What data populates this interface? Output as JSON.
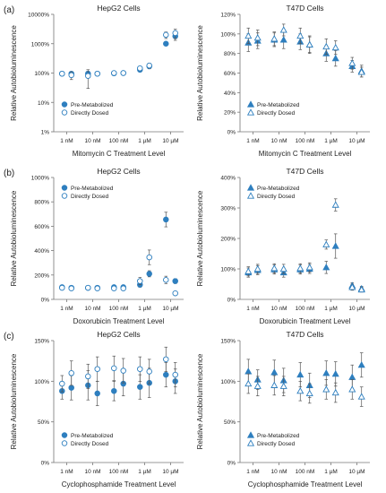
{
  "colors": {
    "series": "#2e7fbf",
    "axis": "#777777",
    "text": "#222222"
  },
  "panel_labels": [
    "(a)",
    "(b)",
    "(c)"
  ],
  "chart_data": [
    {
      "type": "scatter",
      "title": "HepG2 Cells",
      "ylabel": "Relative Autobioluminescence",
      "xlabel": "Mitomycin C Treatment Level",
      "yscale": "log",
      "ylim": [
        1,
        10000
      ],
      "yticks": [
        "1%",
        "10%",
        "100%",
        "1000%",
        "10000%"
      ],
      "x_tick_labels": [
        "1 nM",
        "10 nM",
        "100 nM",
        "1 µM",
        "10 µM"
      ],
      "marker_shape": "circle",
      "legend": "bottom-left",
      "series": [
        {
          "name": "Pre-Metabolized",
          "filled": true,
          "values": [
            95,
            95,
            95,
            95,
            98,
            100,
            130,
            170,
            1000,
            1800
          ],
          "errors": [
            8,
            10,
            20,
            10,
            8,
            10,
            20,
            30,
            150,
            500
          ]
        },
        {
          "name": "Directly Dosed",
          "filled": false,
          "values": [
            95,
            85,
            80,
            95,
            100,
            100,
            145,
            180,
            2000,
            2300
          ],
          "errors": [
            10,
            25,
            50,
            10,
            10,
            10,
            25,
            35,
            500,
            800
          ]
        }
      ]
    },
    {
      "type": "scatter",
      "title": "T47D Cells",
      "ylabel": "Relative Autobioluminescence",
      "xlabel": "Mitomycin C Treatment Level",
      "yscale": "linear",
      "ylim": [
        0,
        120
      ],
      "yticks": [
        "0%",
        "20%",
        "40%",
        "60%",
        "80%",
        "100%",
        "120%"
      ],
      "x_tick_labels": [
        "1 nM",
        "10 nM",
        "100 nM",
        "1 µM",
        "10 µM"
      ],
      "marker_shape": "triangle",
      "legend": "bottom-left",
      "series": [
        {
          "name": "Pre-Metabolized",
          "filled": true,
          "values": [
            91,
            93,
            94,
            94,
            92,
            89,
            80,
            75,
            67,
            62
          ],
          "errors": [
            9,
            8,
            7,
            9,
            8,
            9,
            8,
            8,
            6,
            6
          ]
        },
        {
          "name": "Directly Dosed",
          "filled": false,
          "values": [
            98,
            96,
            95,
            104,
            98,
            89,
            87,
            86,
            70,
            61
          ],
          "errors": [
            8,
            8,
            7,
            6,
            8,
            8,
            8,
            7,
            6,
            5
          ]
        }
      ]
    },
    {
      "type": "scatter",
      "title": "HepG2 Cells",
      "ylabel": "Relative Autobioluminescence",
      "xlabel": "Doxorubicin Treatment Level",
      "yscale": "linear",
      "ylim": [
        0,
        1000
      ],
      "yticks": [
        "0%",
        "200%",
        "400%",
        "600%",
        "800%",
        "1000%"
      ],
      "x_tick_labels": [
        "1 nM",
        "10 nM",
        "100 nM",
        "1 µM",
        "10 µM"
      ],
      "marker_shape": "circle",
      "legend": "top-left",
      "series": [
        {
          "name": "Pre-Metabolized",
          "filled": true,
          "values": [
            100,
            95,
            95,
            95,
            100,
            100,
            120,
            210,
            655,
            150
          ],
          "errors": [
            10,
            10,
            10,
            10,
            15,
            15,
            20,
            25,
            60,
            20
          ]
        },
        {
          "name": "Directly Dosed",
          "filled": false,
          "values": [
            95,
            90,
            95,
            90,
            90,
            90,
            150,
            345,
            160,
            50
          ],
          "errors": [
            10,
            10,
            10,
            10,
            10,
            10,
            30,
            60,
            30,
            10
          ]
        }
      ]
    },
    {
      "type": "scatter",
      "title": "T47D Cells",
      "ylabel": "Relative Autobioluminescence",
      "xlabel": "Doxorubicin Treatment Level",
      "yscale": "linear",
      "ylim": [
        0,
        400
      ],
      "yticks": [
        "0%",
        "100%",
        "200%",
        "300%",
        "400%"
      ],
      "x_tick_labels": [
        "1 nM",
        "10 nM",
        "100 nM",
        "1 µM",
        "10 µM"
      ],
      "marker_shape": "triangle",
      "legend": "top-left",
      "series": [
        {
          "name": "Pre-Metabolized",
          "filled": true,
          "values": [
            88,
            96,
            98,
            88,
            98,
            100,
            105,
            175,
            45,
            35
          ],
          "errors": [
            15,
            15,
            15,
            15,
            15,
            15,
            20,
            40,
            10,
            8
          ]
        },
        {
          "name": "Directly Dosed",
          "filled": false,
          "values": [
            92,
            100,
            102,
            100,
            102,
            105,
            180,
            310,
            40,
            32
          ],
          "errors": [
            15,
            15,
            15,
            15,
            15,
            15,
            15,
            20,
            10,
            8
          ]
        }
      ]
    },
    {
      "type": "scatter",
      "title": "HepG2 Cells",
      "ylabel": "Relative Autobioluminescence",
      "xlabel": "Cyclophosphamide Treatment Level",
      "yscale": "linear",
      "ylim": [
        0,
        150
      ],
      "yticks": [
        "0%",
        "50%",
        "100%",
        "150%"
      ],
      "x_tick_labels": [
        "1 nM",
        "10 nM",
        "100 nM",
        "1 µM",
        "10 µM"
      ],
      "marker_shape": "circle",
      "legend": "bottom-left",
      "series": [
        {
          "name": "Pre-Metabolized",
          "filled": true,
          "values": [
            88,
            92,
            95,
            85,
            88,
            97,
            93,
            98,
            108,
            100
          ],
          "errors": [
            10,
            15,
            18,
            15,
            12,
            15,
            15,
            18,
            15,
            15
          ]
        },
        {
          "name": "Directly Dosed",
          "filled": false,
          "values": [
            97,
            110,
            106,
            115,
            116,
            113,
            115,
            112,
            127,
            108
          ],
          "errors": [
            10,
            15,
            15,
            15,
            15,
            15,
            15,
            15,
            15,
            15
          ]
        }
      ]
    },
    {
      "type": "scatter",
      "title": "T47D Cells",
      "ylabel": "Relative Autobioluminescence",
      "xlabel": "Cyclophosphamide Treatment Level",
      "yscale": "linear",
      "ylim": [
        0,
        150
      ],
      "yticks": [
        "0%",
        "50%",
        "100%",
        "150%"
      ],
      "x_tick_labels": [
        "1 nM",
        "10 nM",
        "100 nM",
        "1 µM",
        "10 µM"
      ],
      "marker_shape": "triangle",
      "legend": "bottom-left",
      "series": [
        {
          "name": "Pre-Metabolized",
          "filled": true,
          "values": [
            112,
            102,
            111,
            101,
            108,
            95,
            110,
            109,
            105,
            120
          ],
          "errors": [
            15,
            12,
            15,
            15,
            15,
            15,
            15,
            15,
            15,
            15
          ]
        },
        {
          "name": "Directly Dosed",
          "filled": false,
          "values": [
            97,
            94,
            95,
            94,
            88,
            85,
            90,
            86,
            90,
            81
          ],
          "errors": [
            12,
            12,
            12,
            12,
            12,
            12,
            12,
            12,
            12,
            12
          ]
        }
      ]
    }
  ]
}
